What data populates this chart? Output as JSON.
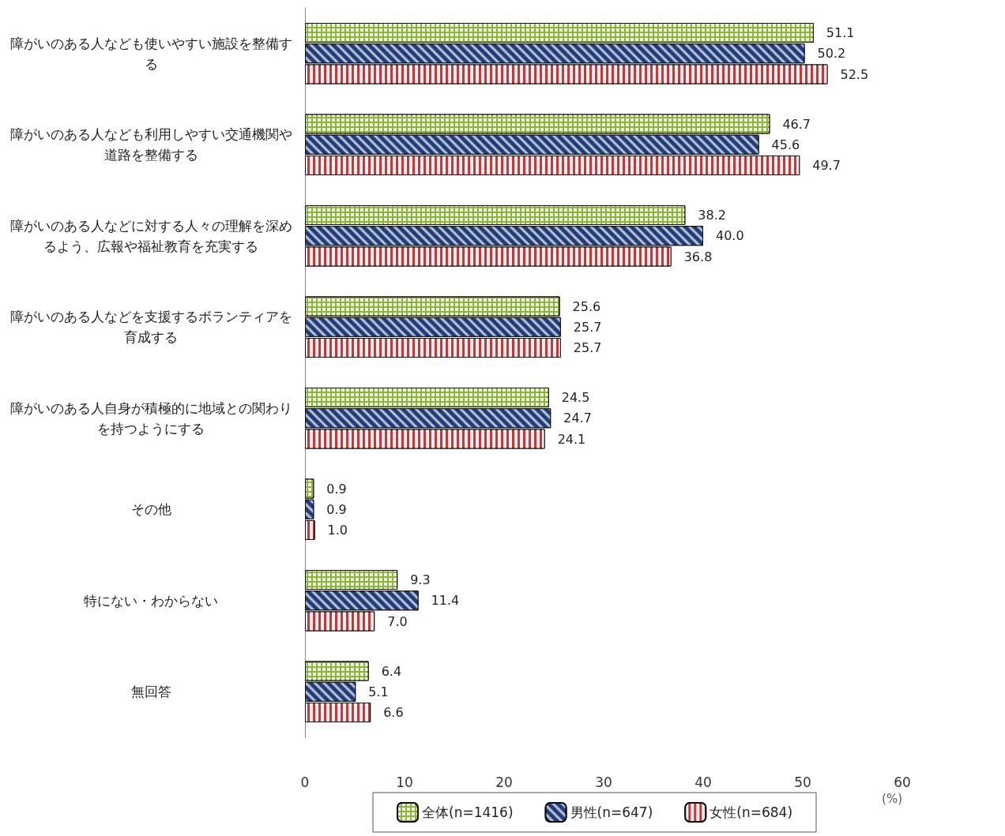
{
  "chart_data": {
    "type": "bar",
    "orientation": "horizontal",
    "xlabel": "(%)",
    "categories": [
      "障がいのある人なども使いやすい施設を整備する",
      "障がいのある人なども利用しやすい交通機関や道路を整備する",
      "障がいのある人などに対する人々の理解を深めるよう、広報や福祉教育を充実する",
      "障がいのある人などを支援するボランティアを育成する",
      "障がいのある人自身が積極的に地域との関わりを持つようにする",
      "その他",
      "特にない・わからない",
      "無回答"
    ],
    "series": [
      {
        "name": "全体(n=1416)",
        "color": "#8db33a",
        "values": [
          51.1,
          46.7,
          38.2,
          25.6,
          24.5,
          0.9,
          9.3,
          6.4
        ],
        "value_labels": [
          "51.1",
          "46.7",
          "38.2",
          "25.6",
          "24.5",
          "0.9",
          "9.3",
          "6.4"
        ]
      },
      {
        "name": "男性(n=647)",
        "color": "#1f3c78",
        "values": [
          50.2,
          45.6,
          40.0,
          25.7,
          24.7,
          0.9,
          11.4,
          5.1
        ],
        "value_labels": [
          "50.2",
          "45.6",
          "40.0",
          "25.7",
          "24.7",
          "0.9",
          "11.4",
          "5.1"
        ]
      },
      {
        "name": "女性(n=684)",
        "color": "#c0393b",
        "values": [
          52.5,
          49.7,
          36.8,
          25.7,
          24.1,
          1.0,
          7.0,
          6.6
        ],
        "value_labels": [
          "52.5",
          "49.7",
          "36.8",
          "25.7",
          "24.1",
          "1.0",
          "7.0",
          "6.6"
        ]
      }
    ],
    "xlim": [
      0,
      60
    ],
    "xticks": [
      0,
      10,
      20,
      30,
      40,
      50,
      60
    ],
    "legend": "bottom",
    "grid": false
  }
}
